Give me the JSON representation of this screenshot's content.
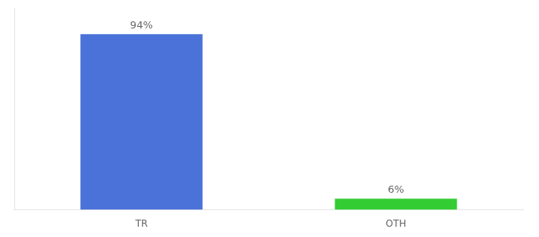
{
  "chart_data": {
    "type": "bar",
    "categories": [
      "TR",
      "OTH"
    ],
    "values": [
      94,
      6
    ],
    "value_labels": [
      "94%",
      "6%"
    ],
    "colors": [
      "#4a72d9",
      "#33cc33"
    ],
    "ylim": [
      0,
      108
    ],
    "grid": false,
    "data_labels": true,
    "tick_labels": "x"
  }
}
